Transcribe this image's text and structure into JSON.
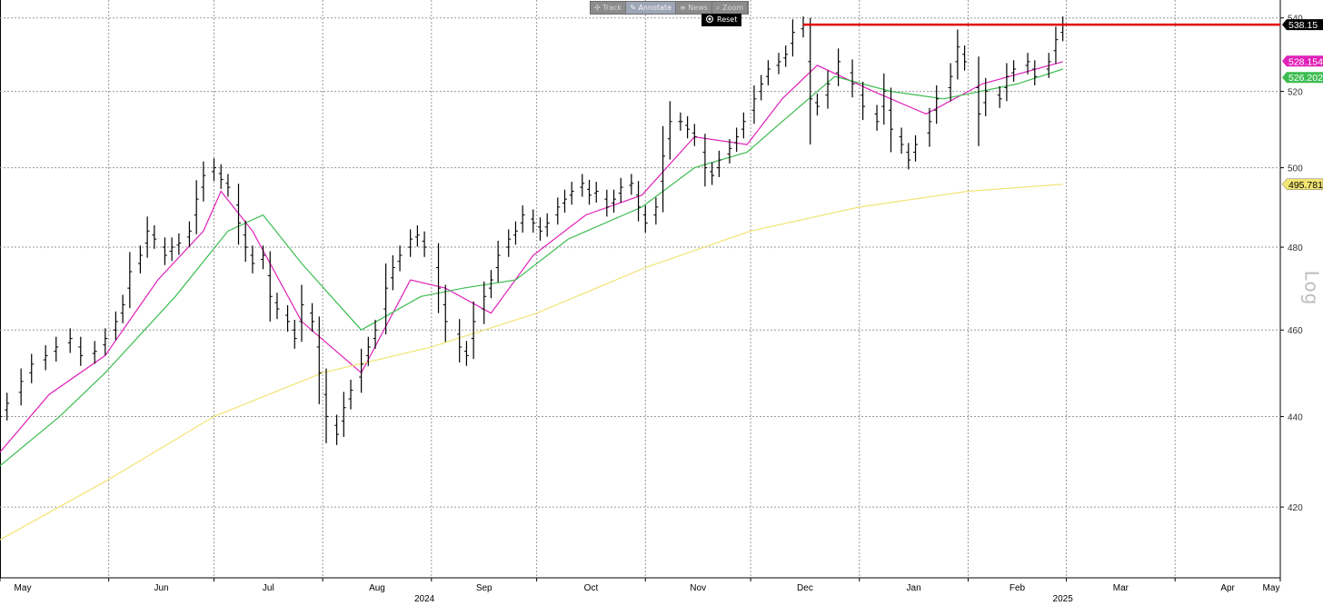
{
  "toolbar": {
    "track": "Track",
    "annotate": "Annotate",
    "news": "News",
    "zoom": "Zoom",
    "reset": "Reset"
  },
  "scale_label": "Log",
  "chart_data": {
    "type": "bar",
    "subtype": "ohlc-price-bars",
    "y_scale": "log",
    "ylim": [
      405,
      545
    ],
    "y_ticks": [
      420,
      440,
      460,
      480,
      500,
      520,
      540
    ],
    "x_range": [
      "2024-05-01",
      "2025-05-01"
    ],
    "x_ticks": [
      {
        "date": "2024-05-01",
        "label": "May"
      },
      {
        "date": "2024-06-01",
        "label": "Jun"
      },
      {
        "date": "2024-07-01",
        "label": "Jul"
      },
      {
        "date": "2024-08-01",
        "label": "Aug"
      },
      {
        "date": "2024-09-01",
        "label": "Sep"
      },
      {
        "date": "2024-10-01",
        "label": "Oct"
      },
      {
        "date": "2024-11-01",
        "label": "Nov"
      },
      {
        "date": "2024-12-01",
        "label": "Dec"
      },
      {
        "date": "2025-01-01",
        "label": "Jan"
      },
      {
        "date": "2025-02-01",
        "label": "Feb"
      },
      {
        "date": "2025-03-01",
        "label": "Mar"
      },
      {
        "date": "2025-04-01",
        "label": "Apr"
      },
      {
        "date": "2025-05-01",
        "label": "May"
      }
    ],
    "year_labels": [
      {
        "date": "2024-08-30",
        "label": "2024"
      },
      {
        "date": "2025-02-28",
        "label": "2025"
      }
    ],
    "grid": true,
    "price_series": {
      "color": "#000000",
      "points": [
        [
          "2024-05-01",
          440
        ],
        [
          "2024-05-03",
          443
        ],
        [
          "2024-05-07",
          448
        ],
        [
          "2024-05-10",
          452
        ],
        [
          "2024-05-14",
          454
        ],
        [
          "2024-05-17",
          456
        ],
        [
          "2024-05-21",
          458
        ],
        [
          "2024-05-24",
          454
        ],
        [
          "2024-05-28",
          455
        ],
        [
          "2024-05-31",
          458
        ],
        [
          "2024-06-03",
          462
        ],
        [
          "2024-06-05",
          466
        ],
        [
          "2024-06-07",
          474
        ],
        [
          "2024-06-10",
          478
        ],
        [
          "2024-06-12",
          484
        ],
        [
          "2024-06-14",
          482
        ],
        [
          "2024-06-17",
          478
        ],
        [
          "2024-06-19",
          480
        ],
        [
          "2024-06-21",
          481
        ],
        [
          "2024-06-24",
          484
        ],
        [
          "2024-06-26",
          492
        ],
        [
          "2024-06-28",
          498
        ],
        [
          "2024-07-01",
          500
        ],
        [
          "2024-07-03",
          497
        ],
        [
          "2024-07-05",
          495
        ],
        [
          "2024-07-08",
          486
        ],
        [
          "2024-07-10",
          480
        ],
        [
          "2024-07-12",
          476
        ],
        [
          "2024-07-15",
          478
        ],
        [
          "2024-07-17",
          468
        ],
        [
          "2024-07-19",
          465
        ],
        [
          "2024-07-22",
          462
        ],
        [
          "2024-07-24",
          458
        ],
        [
          "2024-07-26",
          466
        ],
        [
          "2024-07-29",
          462
        ],
        [
          "2024-07-31",
          450
        ],
        [
          "2024-08-02",
          440
        ],
        [
          "2024-08-05",
          436
        ],
        [
          "2024-08-07",
          442
        ],
        [
          "2024-08-09",
          446
        ],
        [
          "2024-08-12",
          452
        ],
        [
          "2024-08-14",
          456
        ],
        [
          "2024-08-16",
          460
        ],
        [
          "2024-08-19",
          470
        ],
        [
          "2024-08-21",
          475
        ],
        [
          "2024-08-23",
          478
        ],
        [
          "2024-08-26",
          482
        ],
        [
          "2024-08-28",
          483
        ],
        [
          "2024-08-30",
          480
        ],
        [
          "2024-09-03",
          470
        ],
        [
          "2024-09-05",
          462
        ],
        [
          "2024-09-09",
          456
        ],
        [
          "2024-09-11",
          454
        ],
        [
          "2024-09-13",
          462
        ],
        [
          "2024-09-16",
          468
        ],
        [
          "2024-09-18",
          472
        ],
        [
          "2024-09-20",
          478
        ],
        [
          "2024-09-23",
          482
        ],
        [
          "2024-09-25",
          484
        ],
        [
          "2024-09-27",
          488
        ],
        [
          "2024-09-30",
          486
        ],
        [
          "2024-10-02",
          484
        ],
        [
          "2024-10-04",
          486
        ],
        [
          "2024-10-07",
          490
        ],
        [
          "2024-10-09",
          492
        ],
        [
          "2024-10-11",
          494
        ],
        [
          "2024-10-14",
          496
        ],
        [
          "2024-10-16",
          493
        ],
        [
          "2024-10-18",
          494
        ],
        [
          "2024-10-21",
          490
        ],
        [
          "2024-10-23",
          492
        ],
        [
          "2024-10-25",
          495
        ],
        [
          "2024-10-28",
          496
        ],
        [
          "2024-10-30",
          490
        ],
        [
          "2024-11-01",
          486
        ],
        [
          "2024-11-04",
          490
        ],
        [
          "2024-11-06",
          503
        ],
        [
          "2024-11-08",
          512
        ],
        [
          "2024-11-11",
          512
        ],
        [
          "2024-11-13",
          510
        ],
        [
          "2024-11-15",
          508
        ],
        [
          "2024-11-18",
          500
        ],
        [
          "2024-11-20",
          498
        ],
        [
          "2024-11-22",
          502
        ],
        [
          "2024-11-25",
          505
        ],
        [
          "2024-11-27",
          508
        ],
        [
          "2024-11-29",
          512
        ],
        [
          "2024-12-02",
          518
        ],
        [
          "2024-12-04",
          522
        ],
        [
          "2024-12-06",
          526
        ],
        [
          "2024-12-09",
          528
        ],
        [
          "2024-12-11",
          530
        ],
        [
          "2024-12-13",
          536
        ],
        [
          "2024-12-16",
          538
        ],
        [
          "2024-12-18",
          518
        ],
        [
          "2024-12-20",
          516
        ],
        [
          "2024-12-23",
          522
        ],
        [
          "2024-12-26",
          528
        ],
        [
          "2024-12-30",
          522
        ],
        [
          "2025-01-02",
          516
        ],
        [
          "2025-01-06",
          512
        ],
        [
          "2025-01-08",
          520
        ],
        [
          "2025-01-10",
          510
        ],
        [
          "2025-01-13",
          506
        ],
        [
          "2025-01-15",
          502
        ],
        [
          "2025-01-17",
          506
        ],
        [
          "2025-01-21",
          512
        ],
        [
          "2025-01-23",
          518
        ],
        [
          "2025-01-27",
          524
        ],
        [
          "2025-01-29",
          532
        ],
        [
          "2025-01-31",
          528
        ],
        [
          "2025-02-04",
          514
        ],
        [
          "2025-02-06",
          520
        ],
        [
          "2025-02-10",
          518
        ],
        [
          "2025-02-12",
          524
        ],
        [
          "2025-02-14",
          526
        ],
        [
          "2025-02-18",
          528
        ],
        [
          "2025-02-20",
          524
        ],
        [
          "2025-02-24",
          528
        ],
        [
          "2025-02-26",
          534
        ],
        [
          "2025-02-28",
          538
        ]
      ]
    },
    "series": [
      {
        "color": "#e020b8",
        "values": [
          [
            "2024-05-01",
            432
          ],
          [
            "2024-05-15",
            445
          ],
          [
            "2024-05-31",
            454
          ],
          [
            "2024-06-15",
            472
          ],
          [
            "2024-06-28",
            484
          ],
          [
            "2024-07-03",
            494
          ],
          [
            "2024-07-12",
            484
          ],
          [
            "2024-07-26",
            462
          ],
          [
            "2024-08-12",
            450
          ],
          [
            "2024-08-26",
            472
          ],
          [
            "2024-09-05",
            470
          ],
          [
            "2024-09-18",
            464
          ],
          [
            "2024-09-30",
            478
          ],
          [
            "2024-10-15",
            488
          ],
          [
            "2024-10-31",
            493
          ],
          [
            "2024-11-15",
            508
          ],
          [
            "2024-11-30",
            506
          ],
          [
            "2024-12-10",
            518
          ],
          [
            "2024-12-20",
            527
          ],
          [
            "2025-01-05",
            520
          ],
          [
            "2025-01-20",
            514
          ],
          [
            "2025-02-05",
            522
          ],
          [
            "2025-02-28",
            528
          ]
        ]
      },
      {
        "color": "#3cbd50",
        "values": [
          [
            "2024-05-01",
            429
          ],
          [
            "2024-05-18",
            440
          ],
          [
            "2024-05-31",
            450
          ],
          [
            "2024-06-20",
            468
          ],
          [
            "2024-07-05",
            484
          ],
          [
            "2024-07-15",
            488
          ],
          [
            "2024-07-26",
            476
          ],
          [
            "2024-08-12",
            460
          ],
          [
            "2024-08-29",
            468
          ],
          [
            "2024-09-10",
            470
          ],
          [
            "2024-09-25",
            472
          ],
          [
            "2024-10-10",
            482
          ],
          [
            "2024-10-31",
            490
          ],
          [
            "2024-11-15",
            500
          ],
          [
            "2024-11-30",
            504
          ],
          [
            "2024-12-10",
            512
          ],
          [
            "2024-12-25",
            524
          ],
          [
            "2025-01-10",
            520
          ],
          [
            "2025-01-25",
            518
          ],
          [
            "2025-02-15",
            522
          ],
          [
            "2025-02-28",
            526
          ]
        ]
      },
      {
        "color": "#f2e472",
        "values": [
          [
            "2024-05-01",
            413
          ],
          [
            "2024-06-01",
            426
          ],
          [
            "2024-07-01",
            440
          ],
          [
            "2024-08-01",
            450
          ],
          [
            "2024-09-01",
            456
          ],
          [
            "2024-10-01",
            464
          ],
          [
            "2024-11-01",
            475
          ],
          [
            "2024-12-01",
            484
          ],
          [
            "2025-01-01",
            490
          ],
          [
            "2025-02-01",
            494
          ],
          [
            "2025-02-28",
            495.78
          ]
        ]
      }
    ],
    "resistance_line": {
      "value": 538.15,
      "start": "2024-12-16",
      "end": "2025-05-01",
      "color": "#e00000"
    },
    "value_labels": [
      {
        "text": "538.15",
        "value": 538.15,
        "bg": "#000000",
        "fg": "#ffffff"
      },
      {
        "text": "528.154",
        "value": 528.154,
        "bg": "#e020b8",
        "fg": "#ffffff"
      },
      {
        "text": "526.202",
        "value": 526.202,
        "bg": "#3cbd50",
        "fg": "#ffffff"
      },
      {
        "text": "495.781",
        "value": 495.781,
        "bg": "#f2e472",
        "fg": "#000000"
      }
    ]
  }
}
